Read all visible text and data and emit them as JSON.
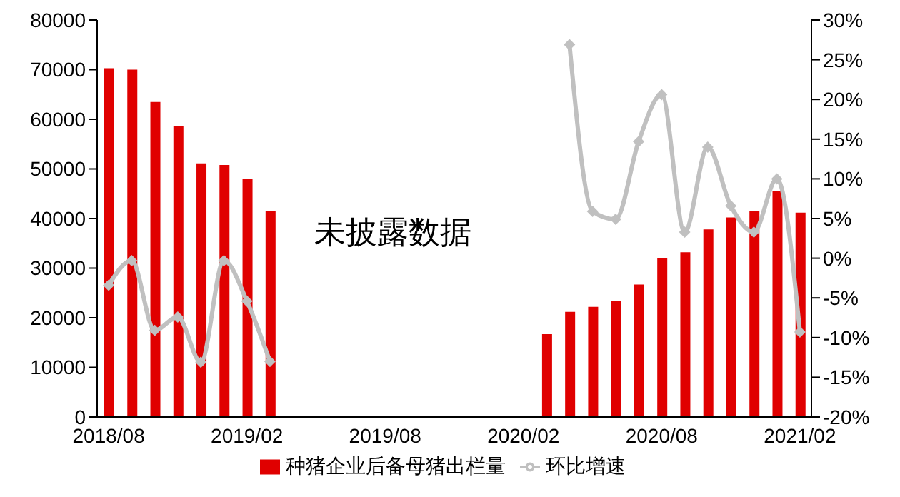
{
  "chart_data": {
    "type": "bar",
    "categories": [
      "2018/08",
      null,
      null,
      null,
      null,
      null,
      "2019/02",
      null,
      null,
      null,
      null,
      null,
      "2019/08",
      null,
      null,
      null,
      null,
      null,
      "2020/02",
      null,
      null,
      null,
      null,
      null,
      "2020/08",
      null,
      null,
      null,
      null,
      null,
      "2021/02"
    ],
    "series": [
      {
        "name": "种猪企业后备母猪出栏量",
        "color": "#e00000",
        "values": [
          70300,
          70000,
          63500,
          58700,
          51100,
          50800,
          47900,
          41600,
          null,
          null,
          null,
          null,
          null,
          null,
          null,
          null,
          null,
          null,
          null,
          16700,
          21200,
          22200,
          23400,
          26700,
          32100,
          33200,
          37800,
          40200,
          41500,
          45600,
          41200
        ]
      },
      {
        "name": "环比增速",
        "type": "line",
        "axis": "y2",
        "color": "#c0c0c0",
        "marker": "diamond",
        "values": [
          -3.4,
          -0.3,
          -9.1,
          -7.4,
          -13.1,
          -0.3,
          -5.4,
          -13.0,
          null,
          null,
          null,
          null,
          null,
          null,
          null,
          null,
          null,
          null,
          null,
          null,
          26.9,
          5.9,
          4.9,
          14.7,
          20.6,
          3.3,
          14.0,
          6.6,
          3.3,
          10.0,
          -9.3
        ]
      }
    ],
    "ylim": [
      0,
      80000
    ],
    "yticks": [
      0,
      10000,
      20000,
      30000,
      40000,
      50000,
      60000,
      70000,
      80000
    ],
    "y2lim": [
      -20,
      30
    ],
    "y2ticks": [
      {
        "value": -20,
        "label": "-20%"
      },
      {
        "value": -15,
        "label": "-15%"
      },
      {
        "value": -10,
        "label": "-10%"
      },
      {
        "value": -5,
        "label": "-5%"
      },
      {
        "value": 0,
        "label": "0%"
      },
      {
        "value": 5,
        "label": "5%"
      },
      {
        "value": 10,
        "label": "10%"
      },
      {
        "value": 15,
        "label": "15%"
      },
      {
        "value": 20,
        "label": "20%"
      },
      {
        "value": 25,
        "label": "25%"
      },
      {
        "value": 30,
        "label": "30%"
      }
    ],
    "annotations": [
      "未披露数据"
    ],
    "grid": false,
    "legend": "bottom"
  }
}
